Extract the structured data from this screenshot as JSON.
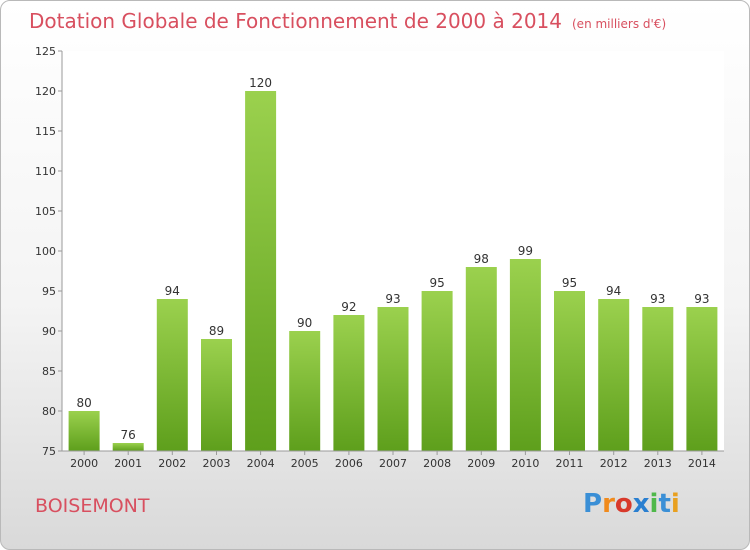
{
  "chart_data": {
    "type": "bar",
    "title": "Dotation Globale de Fonctionnement de 2000 à 2014",
    "subtitle": "(en milliers d'€)",
    "categories": [
      "2000",
      "2001",
      "2002",
      "2003",
      "2004",
      "2005",
      "2006",
      "2007",
      "2008",
      "2009",
      "2010",
      "2011",
      "2012",
      "2013",
      "2014"
    ],
    "values": [
      80,
      76,
      94,
      89,
      120,
      90,
      92,
      93,
      95,
      98,
      99,
      95,
      94,
      93,
      93
    ],
    "ylim": [
      75,
      125
    ],
    "yticks": [
      75,
      80,
      85,
      90,
      95,
      100,
      105,
      110,
      115,
      120,
      125
    ],
    "grid": false,
    "bar_color_top": "#9bd14e",
    "bar_color_bottom": "#5e9f1c"
  },
  "footer": {
    "place": "BOISEMONT",
    "logo": "Proxiti",
    "logo_colors": [
      "#3a8fd6",
      "#f08a1c",
      "#d8392b",
      "#2a7fd0",
      "#4fb84a",
      "#3a8fd6",
      "#e8a020"
    ]
  }
}
